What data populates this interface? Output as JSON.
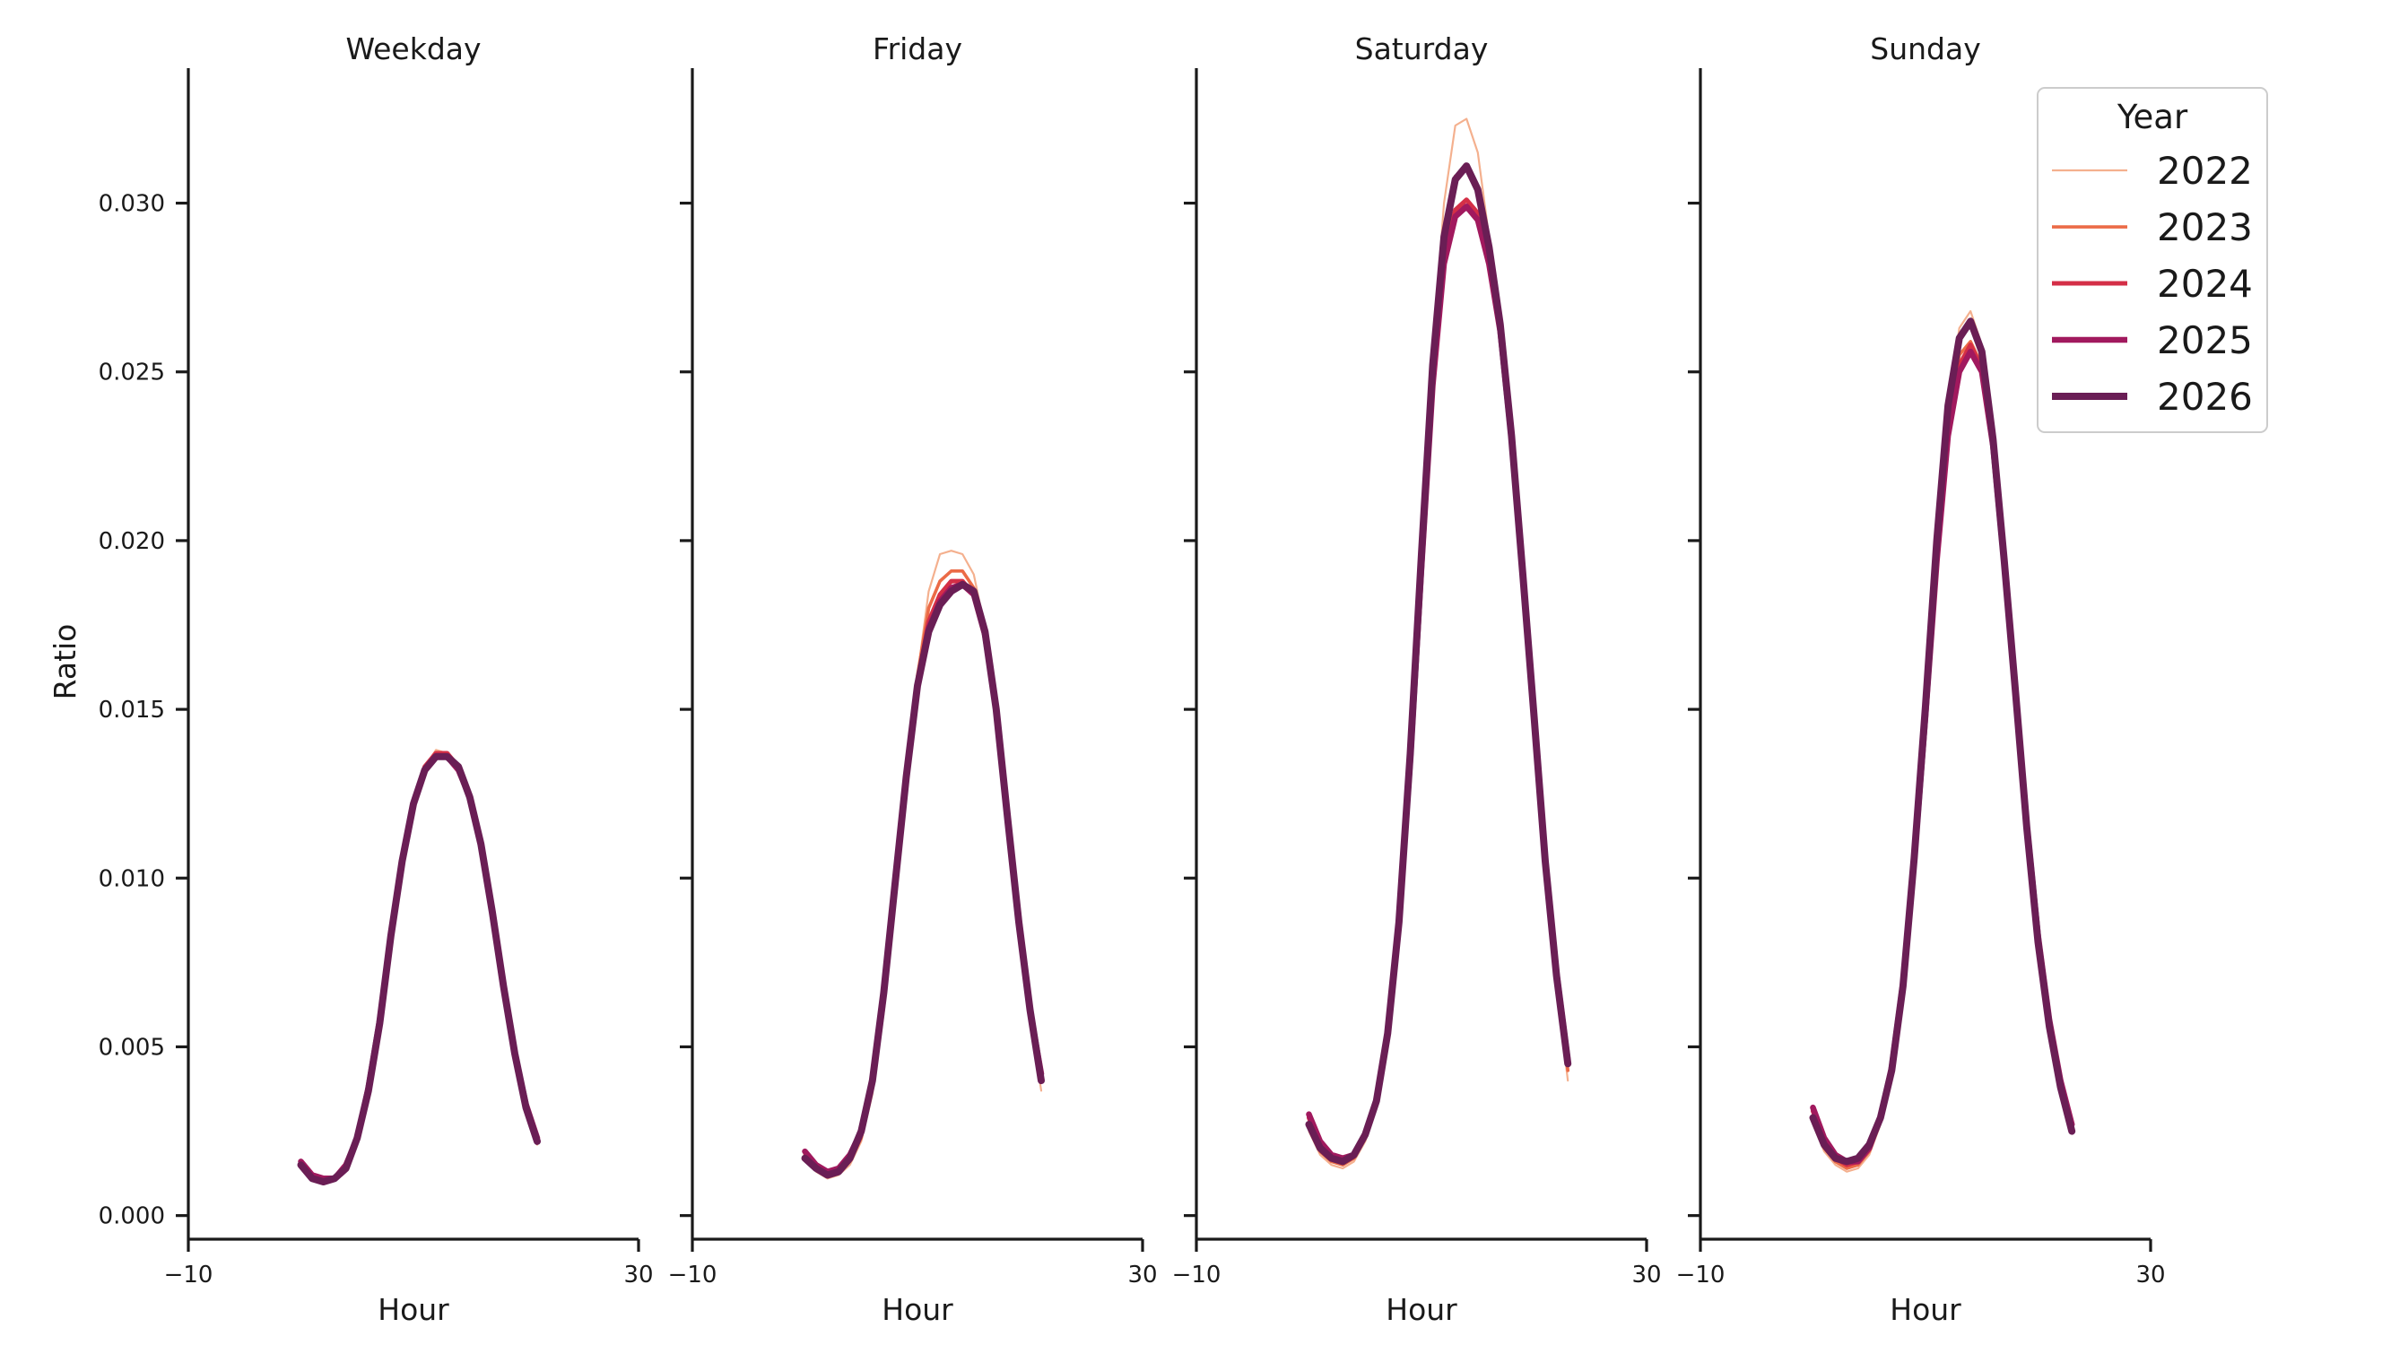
{
  "chart_data": {
    "type": "line",
    "ylabel": "Ratio",
    "xlabel": "Hour",
    "xlim": [
      -10,
      30
    ],
    "ylim": [
      -0.0007,
      0.034
    ],
    "xticks": [
      -10,
      30
    ],
    "xtick_labels": [
      "−10",
      "30"
    ],
    "yticks": [
      0.0,
      0.005,
      0.01,
      0.015,
      0.02,
      0.025,
      0.03
    ],
    "ytick_labels": [
      "0.000",
      "0.005",
      "0.010",
      "0.015",
      "0.020",
      "0.025",
      "0.030"
    ],
    "grid": false,
    "legend": {
      "title": "Year",
      "placement": "top-right",
      "entries": [
        "2022",
        "2023",
        "2024",
        "2025",
        "2026"
      ]
    },
    "series_styles": [
      {
        "name": "2022",
        "color": "#f4b08e",
        "width": 1.5
      },
      {
        "name": "2023",
        "color": "#eb6b47",
        "width": 2.5
      },
      {
        "name": "2024",
        "color": "#d42f47",
        "width": 3.5
      },
      {
        "name": "2025",
        "color": "#a1195e",
        "width": 4.5
      },
      {
        "name": "2026",
        "color": "#6a1e55",
        "width": 5.5
      }
    ],
    "hours": [
      0,
      1,
      2,
      3,
      4,
      5,
      6,
      7,
      8,
      9,
      10,
      11,
      12,
      13,
      14,
      15,
      16,
      17,
      18,
      19,
      20,
      21,
      22,
      23
    ],
    "panels": [
      {
        "title": "Weekday",
        "series": [
          {
            "name": "2022",
            "values": [
              0.0015,
              0.0011,
              0.001,
              0.0011,
              0.0014,
              0.0022,
              0.0036,
              0.0056,
              0.0082,
              0.0105,
              0.0122,
              0.0133,
              0.0138,
              0.0137,
              0.0133,
              0.0125,
              0.0111,
              0.009,
              0.0068,
              0.0048,
              0.0033,
              0.0021,
              null,
              null
            ]
          },
          {
            "name": "2023",
            "values": [
              0.0015,
              0.0011,
              0.001,
              0.0011,
              0.0014,
              0.0022,
              0.0036,
              0.0056,
              0.0082,
              0.0105,
              0.0122,
              0.0133,
              0.0137,
              0.0137,
              0.0133,
              0.0124,
              0.011,
              0.009,
              0.0068,
              0.0048,
              0.0033,
              0.0022,
              null,
              null
            ]
          },
          {
            "name": "2024",
            "values": [
              0.0016,
              0.0011,
              0.001,
              0.0011,
              0.0015,
              0.0023,
              0.0037,
              0.0057,
              0.0083,
              0.0105,
              0.0122,
              0.0133,
              0.0137,
              0.0137,
              0.0133,
              0.0124,
              0.011,
              0.009,
              0.0068,
              0.0048,
              0.0033,
              0.0023,
              null,
              null
            ]
          },
          {
            "name": "2025",
            "values": [
              0.0016,
              0.0012,
              0.0011,
              0.0011,
              0.0015,
              0.0023,
              0.0038,
              0.0058,
              0.0083,
              0.0105,
              0.0122,
              0.0132,
              0.0136,
              0.0136,
              0.0132,
              0.0124,
              0.011,
              0.009,
              0.0068,
              0.0048,
              0.0033,
              0.0023,
              null,
              null
            ]
          },
          {
            "name": "2026",
            "values": [
              0.0015,
              0.0011,
              0.001,
              0.0011,
              0.0014,
              0.0023,
              0.0037,
              0.0057,
              0.0083,
              0.0105,
              0.0122,
              0.0132,
              0.0136,
              0.0136,
              0.0133,
              0.0124,
              0.011,
              0.009,
              0.0068,
              0.0048,
              0.0032,
              0.0022,
              null,
              null
            ]
          }
        ]
      },
      {
        "title": "Friday",
        "series": [
          {
            "name": "2022",
            "values": [
              0.0017,
              0.0013,
              0.0011,
              0.0012,
              0.0015,
              0.0022,
              0.0036,
              0.006,
              0.0092,
              0.0128,
              0.016,
              0.0185,
              0.0196,
              0.0197,
              0.0196,
              0.019,
              0.0174,
              0.015,
              0.0118,
              0.0085,
              0.0059,
              0.0037,
              null,
              null
            ]
          },
          {
            "name": "2023",
            "values": [
              0.0018,
              0.0014,
              0.0012,
              0.0013,
              0.0016,
              0.0023,
              0.0038,
              0.0062,
              0.0096,
              0.013,
              0.016,
              0.018,
              0.0188,
              0.0191,
              0.0191,
              0.0186,
              0.0173,
              0.015,
              0.0118,
              0.0087,
              0.006,
              0.004,
              null,
              null
            ]
          },
          {
            "name": "2024",
            "values": [
              0.0019,
              0.0015,
              0.0013,
              0.0014,
              0.0017,
              0.0024,
              0.0039,
              0.0064,
              0.0097,
              0.013,
              0.0158,
              0.0176,
              0.0184,
              0.0188,
              0.0188,
              0.0184,
              0.0172,
              0.015,
              0.0118,
              0.0087,
              0.0061,
              0.0042,
              null,
              null
            ]
          },
          {
            "name": "2025",
            "values": [
              0.0019,
              0.0015,
              0.0013,
              0.0014,
              0.0018,
              0.0025,
              0.004,
              0.0066,
              0.0098,
              0.013,
              0.0157,
              0.0174,
              0.0182,
              0.0186,
              0.0187,
              0.0184,
              0.0172,
              0.015,
              0.0118,
              0.0088,
              0.0061,
              0.0042,
              null,
              null
            ]
          },
          {
            "name": "2026",
            "values": [
              0.0017,
              0.0014,
              0.0012,
              0.0013,
              0.0017,
              0.0025,
              0.004,
              0.0066,
              0.0098,
              0.013,
              0.0157,
              0.0173,
              0.0181,
              0.0185,
              0.0187,
              0.0185,
              0.0173,
              0.015,
              0.0118,
              0.0087,
              0.0061,
              0.004,
              null,
              null
            ]
          }
        ]
      },
      {
        "title": "Saturday",
        "series": [
          {
            "name": "2022",
            "values": [
              0.0025,
              0.0018,
              0.0015,
              0.0014,
              0.0016,
              0.0022,
              0.0032,
              0.0052,
              0.0085,
              0.0135,
              0.0195,
              0.0255,
              0.03,
              0.0323,
              0.0325,
              0.0315,
              0.029,
              0.0265,
              0.0232,
              0.019,
              0.0148,
              0.0105,
              0.0068,
              0.004
            ]
          },
          {
            "name": "2023",
            "values": [
              0.0026,
              0.0019,
              0.0016,
              0.0015,
              0.0017,
              0.0023,
              0.0033,
              0.0053,
              0.0086,
              0.0135,
              0.0193,
              0.025,
              0.029,
              0.0308,
              0.031,
              0.0303,
              0.0286,
              0.0262,
              0.023,
              0.019,
              0.0148,
              0.0105,
              0.007,
              0.0043
            ]
          },
          {
            "name": "2024",
            "values": [
              0.0029,
              0.0021,
              0.0017,
              0.0016,
              0.0018,
              0.0024,
              0.0034,
              0.0054,
              0.0087,
              0.0135,
              0.0192,
              0.0247,
              0.0284,
              0.0298,
              0.0301,
              0.0297,
              0.0283,
              0.0262,
              0.023,
              0.019,
              0.0148,
              0.0106,
              0.0072,
              0.0046
            ]
          },
          {
            "name": "2025",
            "values": [
              0.003,
              0.0022,
              0.0018,
              0.0017,
              0.0018,
              0.0024,
              0.0034,
              0.0054,
              0.0087,
              0.0135,
              0.0192,
              0.0246,
              0.0282,
              0.0296,
              0.0299,
              0.0295,
              0.0282,
              0.0262,
              0.023,
              0.019,
              0.0148,
              0.0106,
              0.0072,
              0.0046
            ]
          },
          {
            "name": "2026",
            "values": [
              0.0027,
              0.002,
              0.0017,
              0.0016,
              0.0018,
              0.0024,
              0.0034,
              0.0054,
              0.0087,
              0.0137,
              0.0196,
              0.0252,
              0.029,
              0.0307,
              0.0311,
              0.0304,
              0.0287,
              0.0264,
              0.0231,
              0.019,
              0.0148,
              0.0105,
              0.0071,
              0.0045
            ]
          }
        ]
      },
      {
        "title": "Sunday",
        "series": [
          {
            "name": "2022",
            "values": [
              0.0027,
              0.0019,
              0.0015,
              0.0013,
              0.0014,
              0.0018,
              0.0027,
              0.0042,
              0.0067,
              0.0105,
              0.015,
              0.02,
              0.024,
              0.0263,
              0.0268,
              0.0258,
              0.0232,
              0.0195,
              0.0155,
              0.0115,
              0.0082,
              0.0057,
              0.0038,
              0.0025
            ]
          },
          {
            "name": "2023",
            "values": [
              0.0029,
              0.002,
              0.0016,
              0.0014,
              0.0015,
              0.0019,
              0.0028,
              0.0043,
              0.0068,
              0.0106,
              0.015,
              0.0198,
              0.0236,
              0.0255,
              0.0259,
              0.0252,
              0.0228,
              0.0193,
              0.0155,
              0.0116,
              0.0083,
              0.0058,
              0.0039,
              0.0026
            ]
          },
          {
            "name": "2024",
            "values": [
              0.0031,
              0.0022,
              0.0017,
              0.0015,
              0.0016,
              0.002,
              0.0029,
              0.0044,
              0.0069,
              0.0106,
              0.0149,
              0.0196,
              0.0233,
              0.0252,
              0.0258,
              0.0251,
              0.0228,
              0.0193,
              0.0155,
              0.0116,
              0.0083,
              0.0058,
              0.004,
              0.0027
            ]
          },
          {
            "name": "2025",
            "values": [
              0.0032,
              0.0023,
              0.0018,
              0.0016,
              0.0016,
              0.002,
              0.0029,
              0.0044,
              0.0069,
              0.0105,
              0.0148,
              0.0194,
              0.0231,
              0.025,
              0.0256,
              0.025,
              0.0228,
              0.0193,
              0.0155,
              0.0116,
              0.0083,
              0.0058,
              0.004,
              0.0027
            ]
          },
          {
            "name": "2026",
            "values": [
              0.0029,
              0.0021,
              0.0017,
              0.0016,
              0.0017,
              0.0021,
              0.0029,
              0.0043,
              0.0068,
              0.0106,
              0.0151,
              0.02,
              0.024,
              0.026,
              0.0265,
              0.0256,
              0.023,
              0.0194,
              0.0155,
              0.0115,
              0.0081,
              0.0056,
              0.0038,
              0.0025
            ]
          }
        ]
      }
    ]
  }
}
